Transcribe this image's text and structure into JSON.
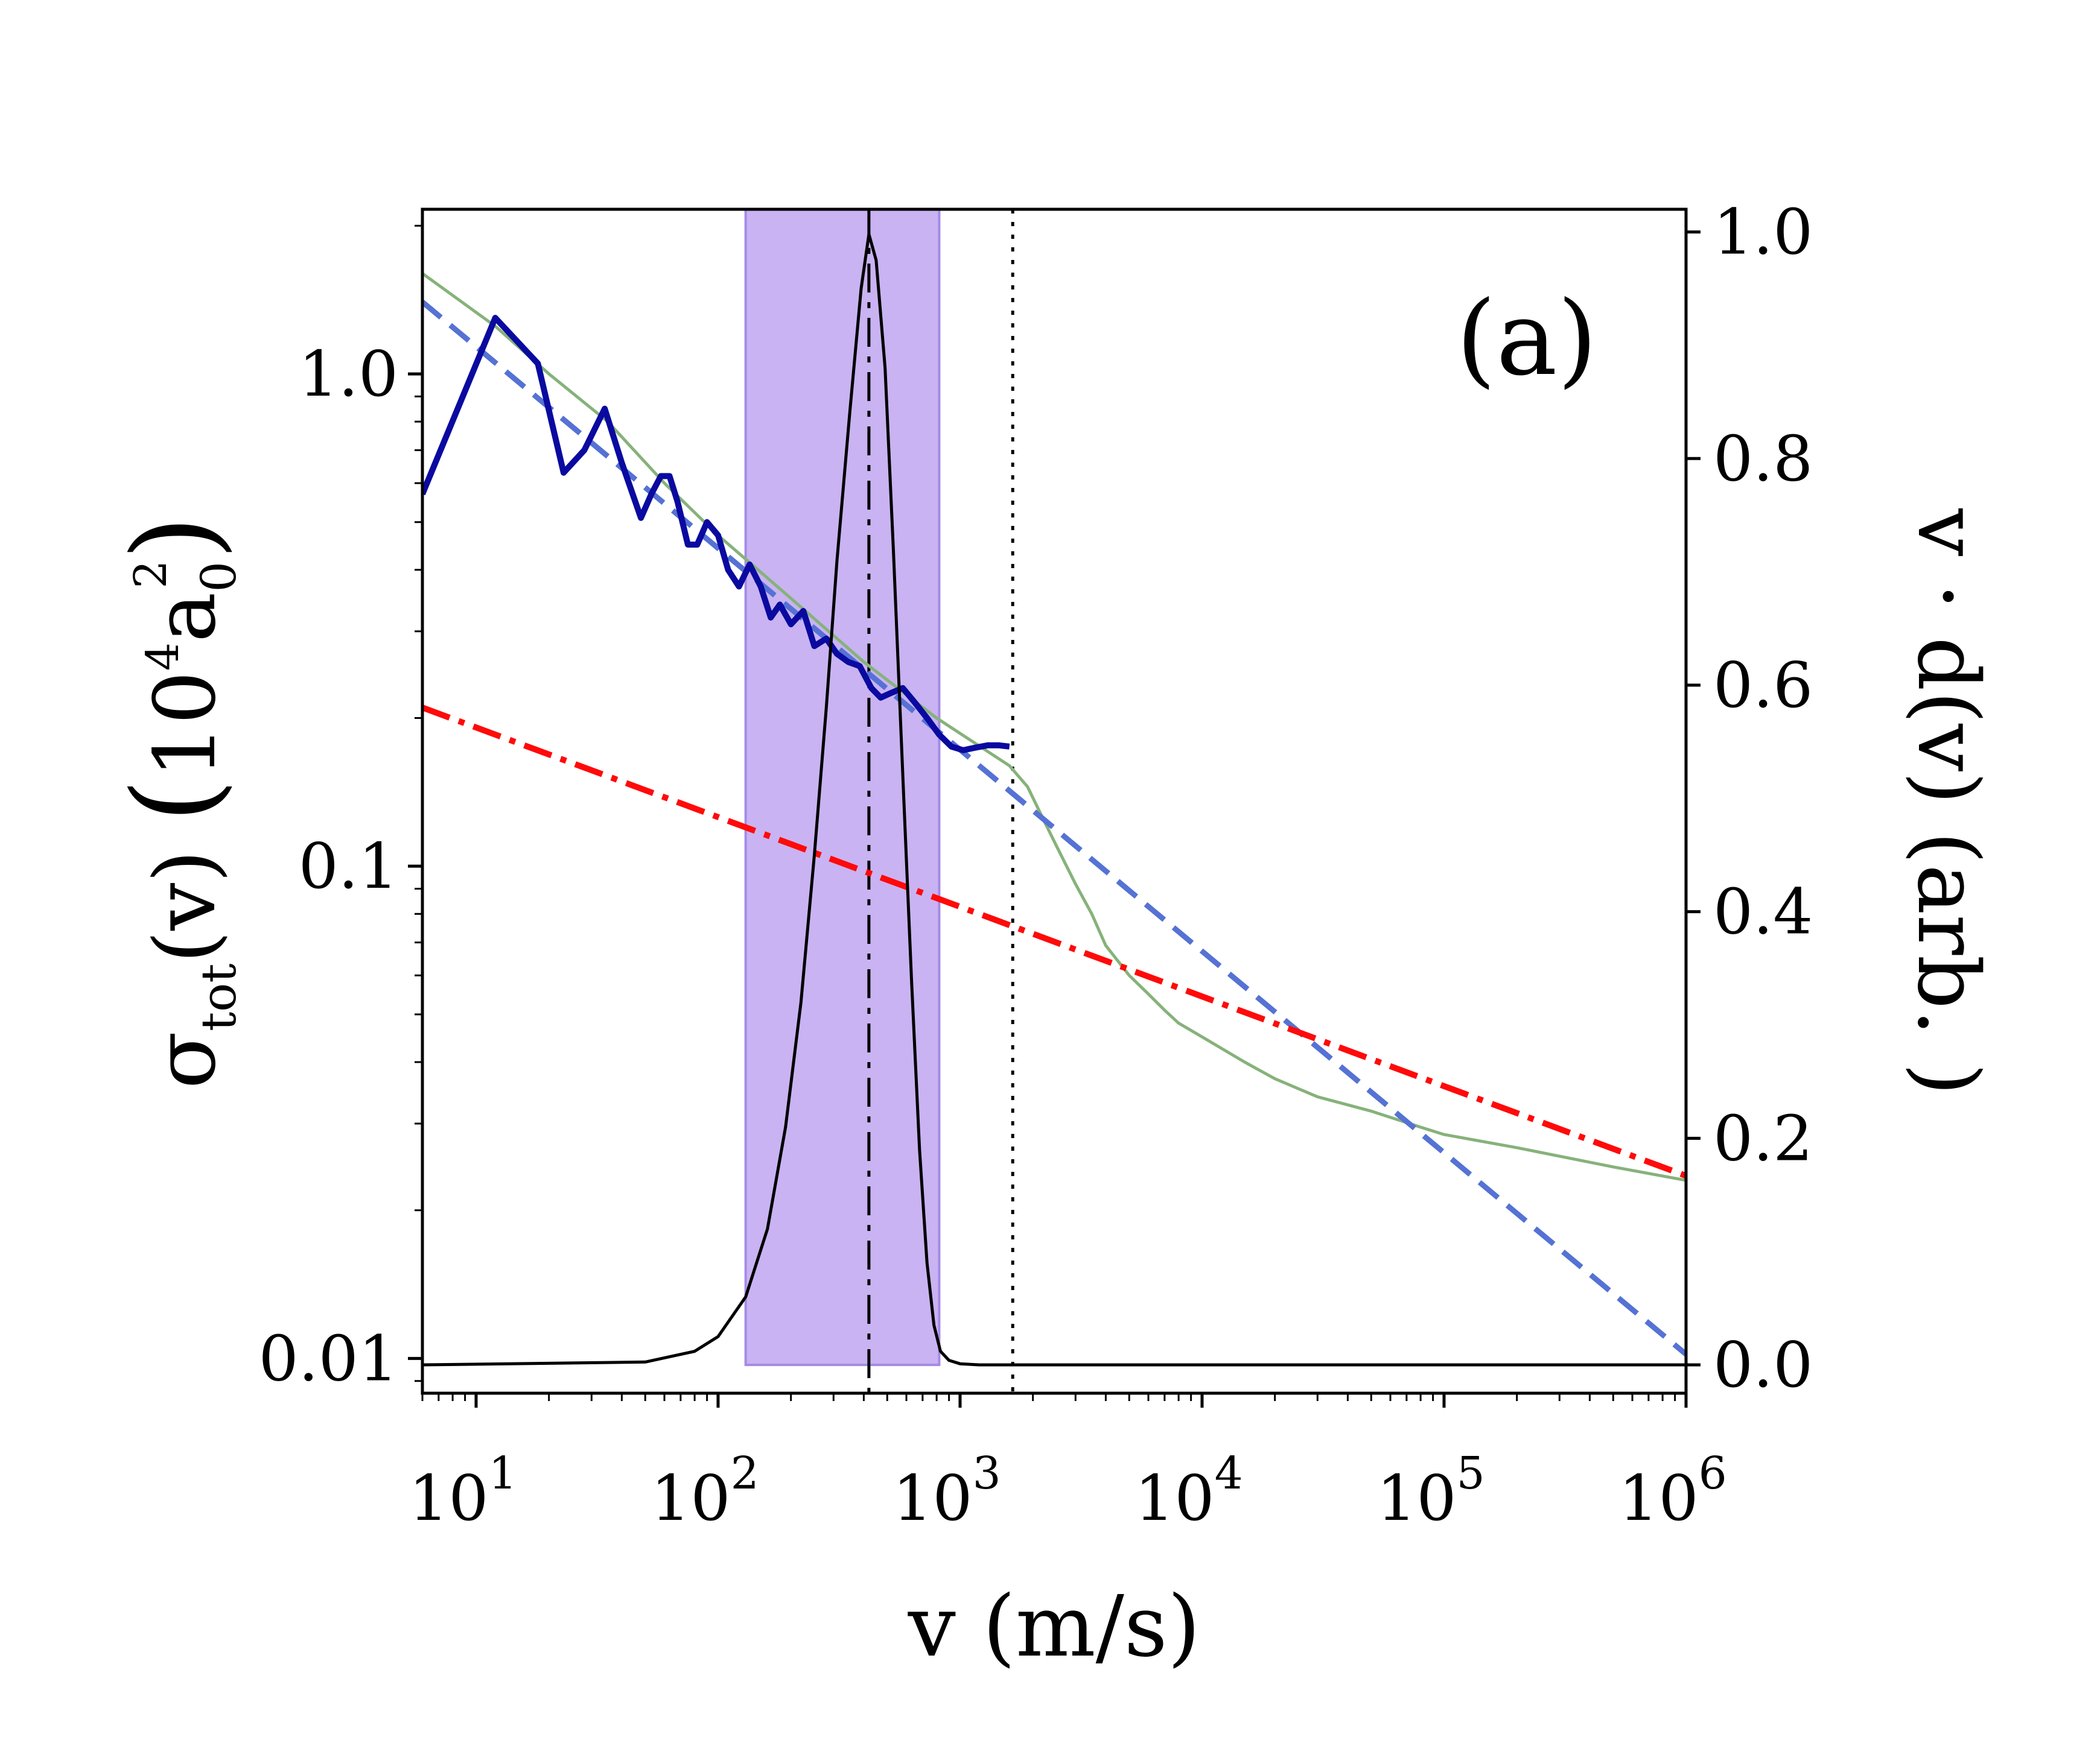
{
  "chart_data": {
    "type": "line",
    "panel_label": "(a)",
    "x_axis": {
      "label": "v (m/s)",
      "scale": "log",
      "range": [
        6,
        1000000
      ],
      "ticks": [
        {
          "value": 10,
          "base": "10",
          "exp": "1"
        },
        {
          "value": 100,
          "base": "10",
          "exp": "2"
        },
        {
          "value": 1000,
          "base": "10",
          "exp": "3"
        },
        {
          "value": 10000,
          "base": "10",
          "exp": "4"
        },
        {
          "value": 100000,
          "base": "10",
          "exp": "5"
        },
        {
          "value": 1000000,
          "base": "10",
          "exp": "6"
        }
      ]
    },
    "y_left_axis": {
      "label_main": "σ",
      "label_sub": "tot",
      "label_rest": "(v)",
      "unit_open": "(",
      "unit_base": "10",
      "unit_sup": "4",
      "unit_var": "a",
      "unit_sub": "0",
      "unit_sup2": "2",
      "unit_close": ")",
      "scale": "log",
      "range": [
        0.0085,
        2.16
      ],
      "ticks": [
        {
          "value": 0.01,
          "label": "0.01"
        },
        {
          "value": 0.1,
          "label": "0.1"
        },
        {
          "value": 1.0,
          "label": "1.0"
        }
      ]
    },
    "y_right_axis": {
      "label": "v · d(v) (arb. )",
      "scale": "linear",
      "range": [
        -0.025,
        1.02
      ],
      "ticks": [
        {
          "value": 0.0,
          "label": "0.0"
        },
        {
          "value": 0.2,
          "label": "0.2"
        },
        {
          "value": 0.4,
          "label": "0.4"
        },
        {
          "value": 0.6,
          "label": "0.6"
        },
        {
          "value": 0.8,
          "label": "0.8"
        },
        {
          "value": 1.0,
          "label": "1.0"
        }
      ]
    },
    "shaded_region": {
      "x_min": 130,
      "x_max": 820,
      "color": "#c9b3f2",
      "edge": "#a58ae6"
    },
    "vertical_lines": [
      {
        "x": 420,
        "style": "dashdot",
        "color": "#000000"
      },
      {
        "x": 1650,
        "style": "dotted",
        "color": "#000000"
      }
    ],
    "series": [
      {
        "axis": "left",
        "color": "#0a0aa0",
        "style": "solid",
        "width": 10,
        "x": [
          6,
          12,
          18,
          23,
          28,
          34,
          40,
          48,
          53,
          58,
          63,
          68,
          75,
          82,
          90,
          100,
          110,
          122,
          135,
          150,
          165,
          180,
          200,
          225,
          250,
          280,
          310,
          345,
          385,
          430,
          470,
          520,
          580,
          650,
          730,
          820,
          920,
          1030,
          1150,
          1300,
          1450,
          1600
        ],
        "y": [
          0.57,
          1.3,
          1.05,
          0.63,
          0.7,
          0.85,
          0.66,
          0.51,
          0.57,
          0.62,
          0.62,
          0.55,
          0.45,
          0.45,
          0.5,
          0.47,
          0.4,
          0.37,
          0.41,
          0.37,
          0.32,
          0.34,
          0.31,
          0.33,
          0.28,
          0.29,
          0.27,
          0.26,
          0.255,
          0.23,
          0.22,
          0.225,
          0.23,
          0.215,
          0.2,
          0.185,
          0.175,
          0.172,
          0.174,
          0.176,
          0.176,
          0.175
        ]
      },
      {
        "axis": "left",
        "color": "#5572d4",
        "style": "dashed",
        "width": 9,
        "x": [
          6,
          1000000
        ],
        "y": [
          1.4,
          0.0102
        ]
      },
      {
        "axis": "left",
        "color": "#ff0a0a",
        "style": "dashdot",
        "width": 10,
        "x": [
          6,
          1000000
        ],
        "y": [
          0.21,
          0.0235
        ]
      },
      {
        "axis": "left",
        "color": "#86b27a",
        "style": "solid",
        "width": 5,
        "x": [
          6,
          12,
          20,
          35,
          60,
          100,
          200,
          400,
          800,
          1600,
          1900,
          2200,
          2500,
          3000,
          3500,
          4000,
          5000,
          6000,
          7000,
          8000,
          10000,
          15000,
          20000,
          30000,
          50000,
          80000,
          100000,
          200000,
          500000,
          1000000
        ],
        "y": [
          1.6,
          1.25,
          1.0,
          0.8,
          0.6,
          0.47,
          0.35,
          0.26,
          0.2,
          0.16,
          0.145,
          0.125,
          0.11,
          0.092,
          0.08,
          0.069,
          0.06,
          0.055,
          0.051,
          0.048,
          0.045,
          0.04,
          0.037,
          0.034,
          0.0318,
          0.0295,
          0.0285,
          0.0268,
          0.0245,
          0.023
        ]
      },
      {
        "axis": "right",
        "color": "#000000",
        "style": "solid",
        "width": 5,
        "x": [
          6,
          50,
          80,
          100,
          130,
          160,
          190,
          220,
          250,
          280,
          310,
          350,
          390,
          420,
          450,
          490,
          530,
          580,
          630,
          680,
          730,
          780,
          830,
          900,
          1000,
          1200,
          1000000
        ],
        "y": [
          0.0,
          0.0025,
          0.012,
          0.025,
          0.06,
          0.12,
          0.21,
          0.32,
          0.45,
          0.58,
          0.71,
          0.84,
          0.95,
          0.998,
          0.975,
          0.88,
          0.72,
          0.52,
          0.34,
          0.19,
          0.09,
          0.035,
          0.012,
          0.004,
          0.001,
          0.0,
          0.0
        ]
      }
    ]
  }
}
